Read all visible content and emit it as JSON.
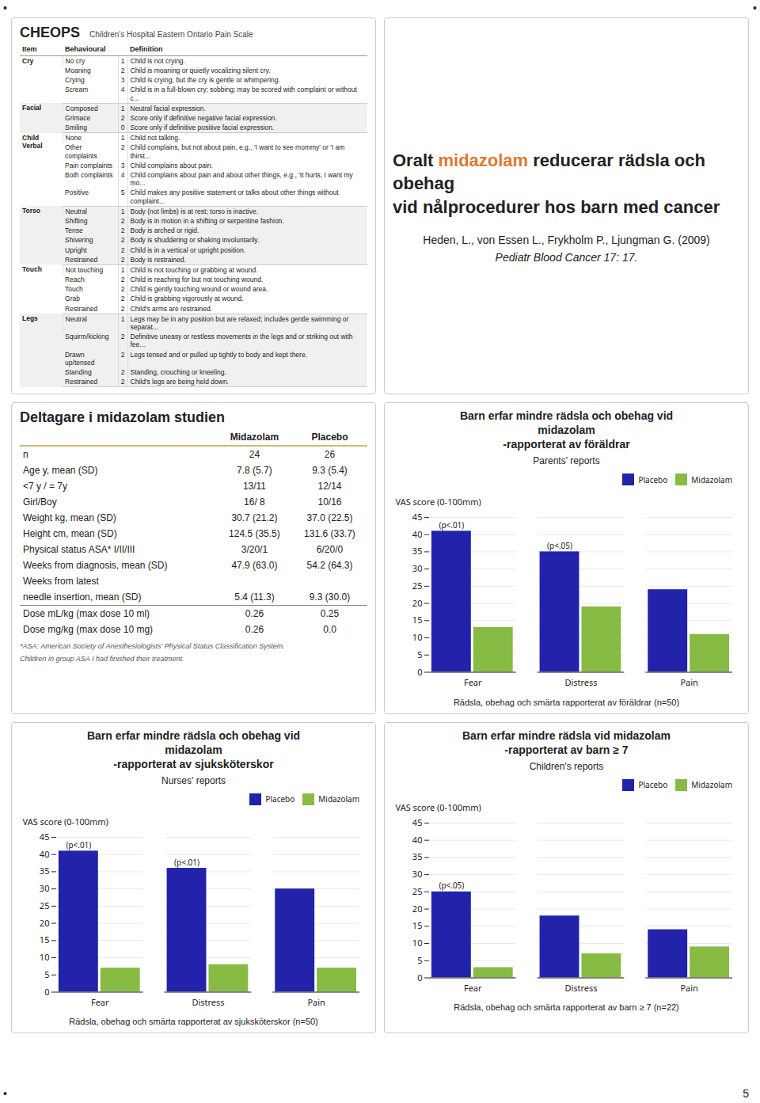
{
  "chart_data": [
    {
      "type": "table",
      "title": "CHEOPS",
      "subtitle": "Children's Hospital Eastern Ontario Pain Scale",
      "columns": [
        "Item",
        "Behavioural",
        "Definition"
      ],
      "rows": [
        {
          "item": "Cry",
          "behaviours": [
            "No cry",
            "Moaning",
            "Crying",
            "Scream"
          ],
          "scores": [
            1,
            2,
            3,
            4
          ],
          "definitions": [
            "Child is not crying.",
            "Child is moaning or quietly vocalizing silent cry.",
            "Child is crying, but the cry is gentle or whimpering.",
            "Child is in a full-blown cry; sobbing; may be scored with complaint or without c..."
          ]
        },
        {
          "item": "Facial",
          "behaviours": [
            "Composed",
            "Grimace",
            "Smiling"
          ],
          "scores": [
            1,
            2,
            0
          ],
          "definitions": [
            "Neutral facial expression.",
            "Score only if definitive negative facial expression.",
            "Score only if definitive positive facial expression."
          ]
        },
        {
          "item": "Child Verbal",
          "behaviours": [
            "None",
            "Other complaints",
            "Pain complaints",
            "Both complaints",
            "Positive"
          ],
          "scores": [
            1,
            2,
            3,
            4,
            5
          ],
          "definitions": [
            "Child not talking.",
            "Child complains, but not about pain, e.g., 'I want to see mommy' or 'I am thirst...",
            "Child complains about pain.",
            "Child complains about pain and about other things, e.g., 'It hurts, I want my mo...",
            "Child makes any positive statement or talks about other things without complaint..."
          ]
        },
        {
          "item": "Torso",
          "behaviours": [
            "Neutral",
            "Shifting",
            "Tense",
            "Shivering",
            "Upright",
            "Restrained"
          ],
          "scores": [
            1,
            2,
            2,
            2,
            2,
            2
          ],
          "definitions": [
            "Body (not limbs) is at rest; torso is inactive.",
            "Body is in motion in a shifting or serpentine fashion.",
            "Body is arched or rigid.",
            "Body is shuddering or shaking involuntarily.",
            "Child is in a vertical or upright position.",
            "Body is restrained."
          ]
        },
        {
          "item": "Touch",
          "behaviours": [
            "Not touching",
            "Reach",
            "Touch",
            "Grab",
            "Restrained"
          ],
          "scores": [
            1,
            2,
            2,
            2,
            2
          ],
          "definitions": [
            "Child is not touching or grabbing at wound.",
            "Child is reaching for but not touching wound.",
            "Child is gently touching wound or wound area.",
            "Child is grabbing vigorously at wound.",
            "Child's arms are restrained."
          ]
        },
        {
          "item": "Legs",
          "behaviours": [
            "Neutral",
            "Squirm/kicking",
            "Drawn up/tensed",
            "Standing",
            "Restrained"
          ],
          "scores": [
            1,
            2,
            2,
            2,
            2
          ],
          "definitions": [
            "Legs may be in any position but are relaxed; includes gentle swimming or separat...",
            "Definitive uneasy or restless movements in the legs and or striking out with fee...",
            "Legs tensed and or pulled up tightly to body and kept there.",
            "Standing, crouching or kneeling.",
            "Child's legs are being held down."
          ]
        }
      ]
    },
    {
      "type": "text",
      "title": [
        "Oralt midazolam reducerar rädsla och obehag",
        "vid nålprocedurer hos barn med cancer"
      ],
      "highlight": {
        "text": "midazolam",
        "color": "#e07830"
      },
      "subtitle": [
        "Heden, L., von Essen L., Frykholm P., Ljungman G. (2009)",
        "Pediatr Blood Cancer 17: 17."
      ]
    },
    {
      "type": "table",
      "title": "Deltagare i midazolam studien",
      "columns": [
        "Midazolam",
        "Placebo"
      ],
      "rows": [
        {
          "label": "n",
          "values": [
            "24",
            "26"
          ]
        },
        {
          "label": "Age y, mean (SD)",
          "values": [
            "7.8 (5.7)",
            "9.3 (5.4)"
          ]
        },
        {
          "label": "<7 y / = 7y",
          "values": [
            "13/11",
            "12/14"
          ]
        },
        {
          "label": "Girl/Boy",
          "values": [
            "16/ 8",
            "10/16"
          ]
        },
        {
          "label": "Weight kg, mean (SD)",
          "values": [
            "30.7 (21.2)",
            "37.0 (22.5)"
          ]
        },
        {
          "label": "Height cm, mean (SD)",
          "values": [
            "124.5 (35.5)",
            "131.6 (33.7)"
          ]
        },
        {
          "label": "Physical status ASA* I/II/III",
          "values": [
            "3/20/1",
            "6/20/0"
          ]
        },
        {
          "label": "Weeks from diagnosis, mean (SD)",
          "values": [
            "47.9 (63.0)",
            "54.2 (64.3)"
          ]
        },
        {
          "label": "Weeks from latest",
          "values": [
            null,
            null
          ]
        },
        {
          "label": "needle insertion, mean (SD)",
          "values": [
            "5.4 (11.3)",
            "9.3 (30.0)"
          ]
        },
        {
          "label": "Dose mL/kg (max dose 10 ml)",
          "values": [
            "0.26",
            "0.25"
          ]
        },
        {
          "label": "Dose mg/kg (max dose 10 mg)",
          "values": [
            "0.26",
            "0.0"
          ]
        }
      ],
      "annotations": [
        "*ASA: American Society of Anesthesiologists' Physical Status Classification System.",
        "Children in group ASA I had finished their treatment."
      ]
    },
    {
      "type": "bar",
      "title": [
        "Barn erfar mindre rädsla och obehag vid",
        "midazolam",
        "-rapporterat av föräldrar"
      ],
      "subtitle": "Parents' reports",
      "categories": [
        "Fear",
        "Distress",
        "Pain"
      ],
      "series": [
        {
          "name": "Placebo",
          "color": "#2222aa",
          "values": [
            41,
            35,
            24
          ]
        },
        {
          "name": "Midazolam",
          "color": "#88bb44",
          "values": [
            13,
            19,
            11
          ]
        }
      ],
      "annotations": [
        {
          "category": "Fear",
          "series": "Placebo",
          "text": "(p<.01)"
        },
        {
          "category": "Distress",
          "series": "Placebo",
          "text": "(p<.05)"
        }
      ],
      "y_label": "VAS score (0-100mm)",
      "ylim": [
        0,
        45
      ],
      "yticks": [
        0,
        5,
        10,
        15,
        20,
        25,
        30,
        35,
        40,
        45
      ],
      "grid": true,
      "legend": "upper right",
      "caption": "Rädsla, obehag och smärta rapporterat av föräldrar (n=50)"
    },
    {
      "type": "bar",
      "title": [
        "Barn erfar mindre rädsla och obehag vid",
        "midazolam",
        "-rapporterat av sjuksköterskor"
      ],
      "subtitle": "Nurses' reports",
      "categories": [
        "Fear",
        "Distress",
        "Pain"
      ],
      "series": [
        {
          "name": "Placebo",
          "color": "#2222aa",
          "values": [
            41,
            36,
            30
          ]
        },
        {
          "name": "Midazolam",
          "color": "#88bb44",
          "values": [
            7,
            8,
            7
          ]
        }
      ],
      "annotations": [
        {
          "category": "Fear",
          "series": "Placebo",
          "text": "(p<.01)"
        },
        {
          "category": "Distress",
          "series": "Placebo",
          "text": "(p<.01)"
        }
      ],
      "y_label": "VAS score (0-100mm)",
      "ylim": [
        0,
        45
      ],
      "yticks": [
        0,
        5,
        10,
        15,
        20,
        25,
        30,
        35,
        40,
        45
      ],
      "grid": true,
      "legend": "upper right",
      "caption": "Rädsla, obehag och smärta rapporterat av sjuksköterskor (n=50)"
    },
    {
      "type": "bar",
      "title": [
        "Barn erfar mindre rädsla vid midazolam",
        "-rapporterat av barn ≥ 7"
      ],
      "subtitle": "Children's reports",
      "categories": [
        "Fear",
        "Distress",
        "Pain"
      ],
      "series": [
        {
          "name": "Placebo",
          "color": "#2222aa",
          "values": [
            25,
            18,
            14
          ]
        },
        {
          "name": "Midazolam",
          "color": "#88bb44",
          "values": [
            3,
            7,
            9
          ]
        }
      ],
      "annotations": [
        {
          "category": "Fear",
          "series": "Placebo",
          "text": "(p<.05)"
        }
      ],
      "y_label": "VAS score (0-100mm)",
      "ylim": [
        0,
        45
      ],
      "yticks": [
        0,
        5,
        10,
        15,
        20,
        25,
        30,
        35,
        40,
        45
      ],
      "grid": true,
      "legend": "upper right",
      "caption": "Rädsla, obehag och smärta rapporterat av barn ≥ 7 (n=22)"
    }
  ],
  "annotations": [
    "5",
    "•",
    "•",
    "•"
  ]
}
